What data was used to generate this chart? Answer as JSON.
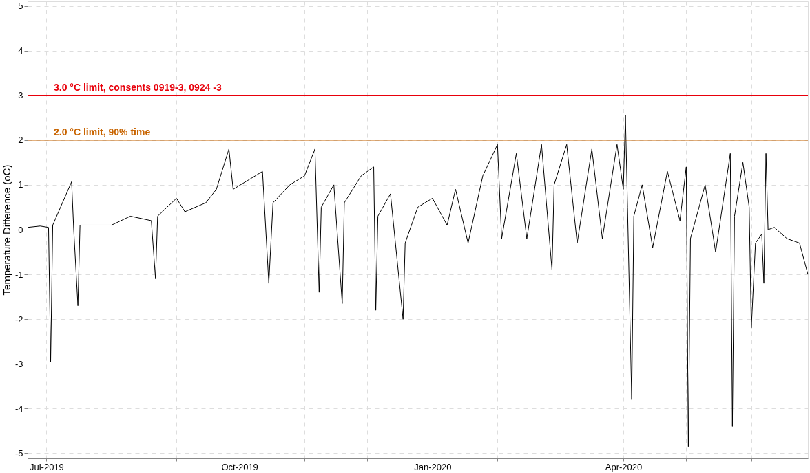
{
  "chart_data": {
    "type": "line",
    "ylabel": "Temperature Difference (oC)",
    "x": [
      "2019-06-22",
      "2019-06-28",
      "2019-07-02",
      "2019-07-03",
      "2019-07-04",
      "2019-07-13",
      "2019-07-14",
      "2019-07-16",
      "2019-07-17",
      "2019-08-01",
      "2019-08-10",
      "2019-08-20",
      "2019-08-22",
      "2019-08-23",
      "2019-09-01",
      "2019-09-05",
      "2019-09-15",
      "2019-09-20",
      "2019-09-26",
      "2019-09-28",
      "2019-10-05",
      "2019-10-12",
      "2019-10-15",
      "2019-10-17",
      "2019-10-25",
      "2019-11-01",
      "2019-11-06",
      "2019-11-08",
      "2019-11-09",
      "2019-11-15",
      "2019-11-19",
      "2019-11-20",
      "2019-11-28",
      "2019-12-04",
      "2019-12-05",
      "2019-12-06",
      "2019-12-12",
      "2019-12-18",
      "2019-12-19",
      "2019-12-25",
      "2020-01-01",
      "2020-01-08",
      "2020-01-12",
      "2020-01-18",
      "2020-01-25",
      "2020-02-01",
      "2020-02-03",
      "2020-02-10",
      "2020-02-15",
      "2020-02-22",
      "2020-02-27",
      "2020-02-28",
      "2020-03-05",
      "2020-03-10",
      "2020-03-17",
      "2020-03-22",
      "2020-03-29",
      "2020-04-01",
      "2020-04-02",
      "2020-04-03",
      "2020-04-05",
      "2020-04-06",
      "2020-04-10",
      "2020-04-15",
      "2020-04-22",
      "2020-04-28",
      "2020-05-01",
      "2020-05-02",
      "2020-05-03",
      "2020-05-10",
      "2020-05-15",
      "2020-05-22",
      "2020-05-23",
      "2020-05-24",
      "2020-05-28",
      "2020-05-31",
      "2020-06-01",
      "2020-06-03",
      "2020-06-06",
      "2020-06-07",
      "2020-06-08",
      "2020-06-09",
      "2020-06-12",
      "2020-06-18",
      "2020-06-24",
      "2020-06-28"
    ],
    "series": [
      {
        "color": "#000000",
        "values": [
          0.05,
          0.08,
          0.05,
          -2.95,
          0.1,
          1.07,
          0.0,
          -1.7,
          0.1,
          0.1,
          0.3,
          0.2,
          -1.1,
          0.3,
          0.7,
          0.4,
          0.6,
          0.9,
          1.8,
          0.9,
          1.1,
          1.3,
          -1.2,
          0.6,
          1.0,
          1.2,
          1.8,
          -1.4,
          0.5,
          1.0,
          -1.65,
          0.6,
          1.2,
          1.4,
          -1.8,
          0.3,
          0.8,
          -2.0,
          -0.3,
          0.5,
          0.7,
          0.1,
          0.9,
          -0.3,
          1.2,
          1.9,
          -0.2,
          1.7,
          -0.2,
          1.9,
          -0.9,
          1.0,
          1.9,
          -0.3,
          1.8,
          -0.2,
          1.9,
          0.9,
          2.55,
          0.5,
          -3.8,
          0.3,
          1.0,
          -0.4,
          1.3,
          0.2,
          1.4,
          -4.85,
          -0.2,
          1.0,
          -0.5,
          1.7,
          -4.4,
          0.3,
          1.5,
          0.5,
          -2.2,
          -0.3,
          -0.1,
          -1.2,
          1.7,
          0.0,
          0.05,
          -0.2,
          -0.3,
          -1.0
        ]
      }
    ],
    "xlim": [
      "2019-06-22",
      "2020-06-28"
    ],
    "xticks": [
      {
        "value": "2019-07-01",
        "label": "Jul-2019"
      },
      {
        "value": "2019-08-01",
        "label": null
      },
      {
        "value": "2019-09-01",
        "label": null
      },
      {
        "value": "2019-10-01",
        "label": "Oct-2019"
      },
      {
        "value": "2019-11-01",
        "label": null
      },
      {
        "value": "2019-12-01",
        "label": null
      },
      {
        "value": "2020-01-01",
        "label": "Jan-2020"
      },
      {
        "value": "2020-02-01",
        "label": null
      },
      {
        "value": "2020-03-01",
        "label": null
      },
      {
        "value": "2020-04-01",
        "label": "Apr-2020"
      },
      {
        "value": "2020-05-01",
        "label": null
      },
      {
        "value": "2020-06-01",
        "label": null
      }
    ],
    "ylim": [
      -5.1,
      5.1
    ],
    "yticks": [
      -5,
      -4,
      -3,
      -2,
      -1,
      0,
      1,
      2,
      3,
      4,
      5
    ],
    "grid": true,
    "line_style": "solid",
    "ref_lines": [
      {
        "axis": "y",
        "value": 3,
        "label": "3.0 °C limit, consents 0919-3, 0924 -3",
        "color": "#e8000b"
      },
      {
        "axis": "y",
        "value": 2,
        "label": "2.0 °C limit, 90% time",
        "color": "#c86400"
      }
    ]
  }
}
